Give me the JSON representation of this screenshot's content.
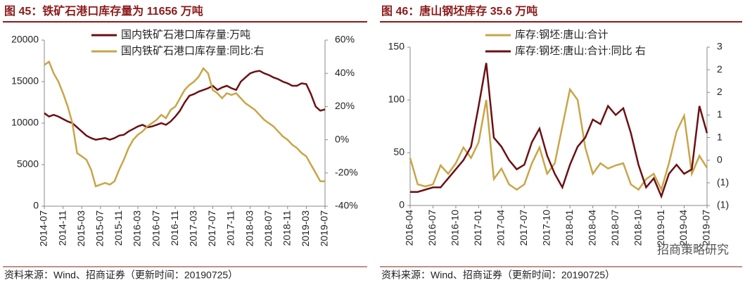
{
  "chart_data": [
    {
      "type": "line",
      "title": "图 45：铁矿石港口库存量为 11656 万吨",
      "source": "资料来源：Wind、招商证券（更新时间：20190725）",
      "categories": [
        "2014-07",
        "2014-08",
        "2014-09",
        "2014-10",
        "2014-11",
        "2014-12",
        "2015-01",
        "2015-02",
        "2015-03",
        "2015-04",
        "2015-05",
        "2015-06",
        "2015-07",
        "2015-08",
        "2015-09",
        "2015-10",
        "2015-11",
        "2015-12",
        "2016-01",
        "2016-02",
        "2016-03",
        "2016-04",
        "2016-05",
        "2016-06",
        "2016-07",
        "2016-08",
        "2016-09",
        "2016-10",
        "2016-11",
        "2016-12",
        "2017-01",
        "2017-02",
        "2017-03",
        "2017-04",
        "2017-05",
        "2017-06",
        "2017-07",
        "2017-08",
        "2017-09",
        "2017-10",
        "2017-11",
        "2017-12",
        "2018-01",
        "2018-02",
        "2018-03",
        "2018-04",
        "2018-05",
        "2018-06",
        "2018-07",
        "2018-08",
        "2018-09",
        "2018-10",
        "2018-11",
        "2018-12",
        "2019-01",
        "2019-02",
        "2019-03",
        "2019-04",
        "2019-05",
        "2019-06",
        "2019-07"
      ],
      "xticks": [
        "2014-07",
        "2014-11",
        "2015-03",
        "2015-07",
        "2015-11",
        "2016-03",
        "2016-07",
        "2016-11",
        "2017-03",
        "2017-07",
        "2017-11",
        "2018-03",
        "2018-07",
        "2018-11",
        "2019-03",
        "2019-07"
      ],
      "ylim": [
        0,
        20000
      ],
      "yticks": [
        0,
        5000,
        10000,
        15000,
        20000
      ],
      "y2lim": [
        -40,
        60
      ],
      "y2ticks": [
        {
          "value": -40,
          "label": "-40%"
        },
        {
          "value": -20,
          "label": "-20%"
        },
        {
          "value": 0,
          "label": "0%"
        },
        {
          "value": 20,
          "label": "20%"
        },
        {
          "value": 40,
          "label": "40%"
        },
        {
          "value": 60,
          "label": "60%"
        }
      ],
      "series": [
        {
          "name": "国内铁矿石港口库存量:万吨",
          "color": "#6b1014",
          "values": [
            11200,
            10800,
            11000,
            10800,
            10500,
            10200,
            10000,
            9500,
            9000,
            8500,
            8200,
            8000,
            8100,
            8200,
            8000,
            8200,
            8500,
            8600,
            9000,
            9300,
            9600,
            9800,
            9500,
            9600,
            9800,
            10000,
            9800,
            10200,
            10800,
            11500,
            12500,
            13300,
            13500,
            13800,
            14000,
            14200,
            14500,
            14000,
            14300,
            14500,
            14200,
            14000,
            15000,
            15500,
            16000,
            16200,
            16300,
            16000,
            15800,
            15500,
            15300,
            15000,
            14800,
            14500,
            14500,
            14800,
            14700,
            13500,
            12000,
            11500,
            11656
          ]
        },
        {
          "name": "国内铁矿石港口库存量:同比:右",
          "color": "#c8a548",
          "axis": "y2",
          "values": [
            45,
            47,
            40,
            35,
            28,
            20,
            10,
            -8,
            -10,
            -12,
            -18,
            -28,
            -27,
            -26,
            -27,
            -25,
            -18,
            -12,
            -5,
            0,
            3,
            5,
            8,
            10,
            12,
            15,
            13,
            18,
            20,
            25,
            30,
            33,
            35,
            38,
            43,
            40,
            30,
            28,
            25,
            28,
            27,
            28,
            25,
            22,
            20,
            18,
            15,
            12,
            10,
            8,
            5,
            2,
            0,
            -3,
            -5,
            -8,
            -10,
            -15,
            -20,
            -25,
            -25
          ]
        }
      ]
    },
    {
      "type": "line",
      "title": "图 46：唐山钢坯库存 35.6 万吨",
      "source": "资料来源：Wind、招商证券（更新时间：20190725）",
      "categories": [
        "2016-04",
        "2016-05",
        "2016-06",
        "2016-07",
        "2016-08",
        "2016-09",
        "2016-10",
        "2016-11",
        "2016-12",
        "2017-01",
        "2017-02",
        "2017-03",
        "2017-04",
        "2017-05",
        "2017-06",
        "2017-07",
        "2017-08",
        "2017-09",
        "2017-10",
        "2017-11",
        "2017-12",
        "2018-01",
        "2018-02",
        "2018-03",
        "2018-04",
        "2018-05",
        "2018-06",
        "2018-07",
        "2018-08",
        "2018-09",
        "2018-10",
        "2018-11",
        "2018-12",
        "2019-01",
        "2019-02",
        "2019-03",
        "2019-04",
        "2019-05",
        "2019-06",
        "2019-07"
      ],
      "xticks": [
        "2016-04",
        "2016-07",
        "2016-10",
        "2017-01",
        "2017-04",
        "2017-07",
        "2017-10",
        "2018-01",
        "2018-04",
        "2018-07",
        "2018-10",
        "2019-01",
        "2019-04",
        "2019-07"
      ],
      "ylim": [
        0,
        150
      ],
      "yticks": [
        0,
        50,
        100,
        150
      ],
      "y2lim": [
        -1,
        2.5
      ],
      "y2ticks": [
        {
          "value": -1,
          "label": "(1)"
        },
        {
          "value": -0.5,
          "label": "(1)"
        },
        0,
        {
          "value": 0.5,
          "label": "1"
        },
        1,
        {
          "value": 1.5,
          "label": "2"
        },
        2,
        {
          "value": 2.5,
          "label": "3"
        }
      ],
      "series": [
        {
          "name": "库存:钢坯:唐山:合计",
          "color": "#c8a548",
          "values": [
            45,
            20,
            18,
            20,
            38,
            30,
            40,
            55,
            45,
            60,
            100,
            25,
            35,
            20,
            15,
            20,
            40,
            55,
            30,
            40,
            75,
            110,
            100,
            55,
            30,
            40,
            35,
            38,
            40,
            20,
            15,
            25,
            30,
            15,
            40,
            70,
            85,
            30,
            47,
            35.6
          ]
        },
        {
          "name": "库存:钢坯:唐山:合计:同比 右",
          "color": "#6b1014",
          "axis": "y2",
          "values": [
            -0.7,
            -0.7,
            -0.65,
            -0.6,
            -0.6,
            -0.4,
            -0.2,
            0,
            0.3,
            1.2,
            2.15,
            0.5,
            0.3,
            0,
            -0.2,
            -0.1,
            0.4,
            0.7,
            0.1,
            -0.3,
            -0.6,
            -0.1,
            0.3,
            0.5,
            0.9,
            0.8,
            1.2,
            1.0,
            1.15,
            0.6,
            -0.1,
            -0.6,
            -0.4,
            -0.8,
            -0.3,
            -0.1,
            -0.3,
            -0.2,
            1.2,
            0.6
          ]
        }
      ]
    }
  ],
  "watermark": "招商策略研究"
}
